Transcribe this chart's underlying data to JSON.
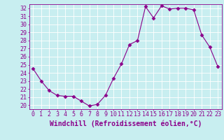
{
  "x": [
    0,
    1,
    2,
    3,
    4,
    5,
    6,
    7,
    8,
    9,
    10,
    11,
    12,
    13,
    14,
    15,
    16,
    17,
    18,
    19,
    20,
    21,
    22,
    23
  ],
  "y": [
    24.5,
    23.0,
    21.8,
    21.2,
    21.1,
    21.1,
    20.5,
    19.9,
    20.1,
    21.2,
    23.3,
    25.1,
    27.5,
    28.0,
    32.2,
    30.8,
    32.3,
    31.9,
    32.0,
    32.0,
    31.8,
    28.7,
    27.2,
    24.8
  ],
  "line_color": "#8B008B",
  "marker": "D",
  "marker_size": 2.5,
  "bg_color": "#c8eef0",
  "grid_color": "#ffffff",
  "xlabel": "Windchill (Refroidissement éolien,°C)",
  "ylabel_ticks": [
    20,
    21,
    22,
    23,
    24,
    25,
    26,
    27,
    28,
    29,
    30,
    31,
    32
  ],
  "xlim": [
    -0.5,
    23.5
  ],
  "ylim": [
    19.5,
    32.5
  ],
  "xlabel_fontsize": 7,
  "tick_fontsize": 6,
  "label_color": "#8B008B"
}
